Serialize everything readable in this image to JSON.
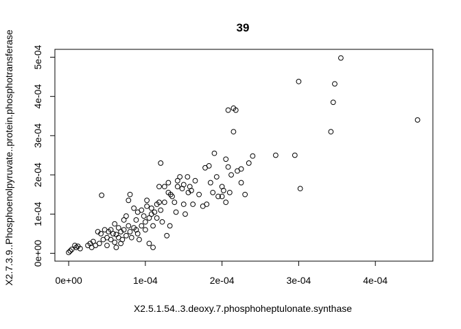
{
  "chart_data": {
    "type": "scatter",
    "title": "39",
    "xlabel": "X2.5.1.54..3.deoxy.7.phosphoheptulonate.synthase",
    "ylabel": "X2.7.3.9..Phosphoenolpyruvate..protein.phosphotransferase",
    "xlim": [
      -1.8e-05,
      0.000475
    ],
    "ylim": [
      -2e-05,
      0.00052
    ],
    "x_ticks": [
      0,
      0.0001,
      0.0002,
      0.0003,
      0.0004
    ],
    "x_tick_labels": [
      "0e+00",
      "1e-04",
      "2e-04",
      "3e-04",
      "4e-04"
    ],
    "y_ticks": [
      0,
      0.0001,
      0.0002,
      0.0003,
      0.0004,
      0.0005
    ],
    "y_tick_labels": [
      "0e+00",
      "1e-04",
      "2e-04",
      "3e-04",
      "4e-04",
      "5e-04"
    ],
    "marker": "open-circle",
    "points": [
      [
        0.0,
        2e-06
      ],
      [
        2e-06,
        6e-06
      ],
      [
        4e-06,
        1e-05
      ],
      [
        8e-06,
        2e-05
      ],
      [
        1e-05,
        1.5e-05
      ],
      [
        1.2e-05,
        1.8e-05
      ],
      [
        1.5e-05,
        1.2e-05
      ],
      [
        2.5e-05,
        2e-05
      ],
      [
        2.8e-05,
        2.5e-05
      ],
      [
        3e-05,
        1.5e-05
      ],
      [
        3.2e-05,
        3e-05
      ],
      [
        3.5e-05,
        2e-05
      ],
      [
        3.8e-05,
        5.5e-05
      ],
      [
        4e-05,
        2.5e-05
      ],
      [
        4.2e-05,
        5e-05
      ],
      [
        4.3e-05,
        0.000148
      ],
      [
        4.5e-05,
        3.5e-05
      ],
      [
        4.7e-05,
        6e-05
      ],
      [
        5e-05,
        2e-05
      ],
      [
        5e-05,
        4e-05
      ],
      [
        5.2e-05,
        5.5e-05
      ],
      [
        5.5e-05,
        3.5e-05
      ],
      [
        5.8e-05,
        5e-05
      ],
      [
        6e-05,
        7.5e-05
      ],
      [
        6e-05,
        2.8e-05
      ],
      [
        6.2e-05,
        4.8e-05
      ],
      [
        6.5e-05,
        6.5e-05
      ],
      [
        6.5e-05,
        4e-05
      ],
      [
        6.8e-05,
        5.5e-05
      ],
      [
        7e-05,
        3.5e-05
      ],
      [
        7.2e-05,
        6e-05
      ],
      [
        7.5e-05,
        4.5e-05
      ],
      [
        7.5e-05,
        9.5e-05
      ],
      [
        7.8e-05,
        0.000135
      ],
      [
        8e-05,
        5.5e-05
      ],
      [
        8e-05,
        0.00015
      ],
      [
        8.2e-05,
        4e-05
      ],
      [
        8.5e-05,
        6.5e-05
      ],
      [
        8.8e-05,
        8.5e-05
      ],
      [
        9e-05,
        0.000105
      ],
      [
        9e-05,
        5e-05
      ],
      [
        9.5e-05,
        7e-05
      ],
      [
        9.5e-05,
        0.00011
      ],
      [
        0.0001,
        6e-05
      ],
      [
        0.0001,
        8e-05
      ],
      [
        0.000102,
        0.00012
      ],
      [
        0.000105,
        9e-05
      ],
      [
        0.000105,
        2.5e-05
      ],
      [
        0.000108,
        0.0001
      ],
      [
        0.00011,
        1.5e-05
      ],
      [
        0.00011,
        7e-05
      ],
      [
        0.000115,
        0.000125
      ],
      [
        0.000115,
        9e-05
      ],
      [
        0.000118,
        0.00017
      ],
      [
        0.00012,
        0.00023
      ],
      [
        0.00012,
        0.00011
      ],
      [
        0.000122,
        8e-05
      ],
      [
        0.000125,
        0.00013
      ],
      [
        0.000128,
        4.5e-05
      ],
      [
        0.00013,
        0.000155
      ],
      [
        0.00013,
        0.00018
      ],
      [
        0.000132,
        7e-05
      ],
      [
        0.000135,
        0.000145
      ],
      [
        0.00014,
        0.000105
      ],
      [
        0.000142,
        0.000185
      ],
      [
        0.000145,
        0.000195
      ],
      [
        0.000148,
        0.000165
      ],
      [
        0.00015,
        0.000125
      ],
      [
        0.000152,
        0.0001
      ],
      [
        0.000155,
        0.000195
      ],
      [
        0.000158,
        0.00017
      ],
      [
        0.00016,
        0.00016
      ],
      [
        0.000165,
        0.000185
      ],
      [
        0.00017,
        0.00015
      ],
      [
        0.000175,
        0.00012
      ],
      [
        0.00018,
        0.000125
      ],
      [
        0.000185,
        0.00018
      ],
      [
        0.000188,
        0.000155
      ],
      [
        0.00019,
        0.000255
      ],
      [
        0.000195,
        0.000145
      ],
      [
        0.0002,
        0.00017
      ],
      [
        0.000202,
        0.00016
      ],
      [
        0.000205,
        0.00013
      ],
      [
        0.000205,
        0.00024
      ],
      [
        0.000208,
        0.00022
      ],
      [
        0.000208,
        0.000365
      ],
      [
        0.00021,
        0.000155
      ],
      [
        0.000212,
        0.0002
      ],
      [
        0.000215,
        0.00031
      ],
      [
        0.000215,
        0.00037
      ],
      [
        0.000218,
        0.000365
      ],
      [
        0.00022,
        0.00021
      ],
      [
        0.000225,
        0.000215
      ],
      [
        0.00023,
        0.00015
      ],
      [
        0.000235,
        0.00023
      ],
      [
        0.00024,
        0.000248
      ],
      [
        0.00027,
        0.00025
      ],
      [
        0.000295,
        0.00025
      ],
      [
        0.0003,
        0.000438
      ],
      [
        0.000302,
        0.000165
      ],
      [
        0.000342,
        0.00031
      ],
      [
        0.000345,
        0.000385
      ],
      [
        0.000347,
        0.000432
      ],
      [
        0.000355,
        0.000498
      ],
      [
        0.000455,
        0.00034
      ],
      [
        6.2e-05,
        1.5e-05
      ],
      [
        7.2e-05,
        8.5e-05
      ],
      [
        8.5e-05,
        0.000115
      ],
      [
        9.2e-05,
        3.5e-05
      ],
      [
        0.000102,
        0.000135
      ],
      [
        0.000112,
        0.000105
      ],
      [
        0.000125,
        0.00017
      ],
      [
        0.000138,
        0.00013
      ],
      [
        0.00015,
        0.000175
      ],
      [
        0.000162,
        0.000125
      ],
      [
        0.000178,
        0.000218
      ],
      [
        0.000183,
        0.000223
      ],
      [
        0.000193,
        0.000195
      ],
      [
        0.0002,
        0.000145
      ],
      [
        0.000225,
        0.00018
      ],
      [
        5.5e-05,
        6e-05
      ],
      [
        6.8e-05,
        2.5e-05
      ],
      [
        7.8e-05,
        7e-05
      ],
      [
        8.8e-05,
        6e-05
      ],
      [
        9.8e-05,
        9.5e-05
      ],
      [
        0.000108,
        0.000115
      ],
      [
        0.000118,
        0.00013
      ],
      [
        0.000133,
        0.00015
      ],
      [
        0.000142,
        0.00017
      ],
      [
        0.000156,
        0.000155
      ]
    ]
  }
}
